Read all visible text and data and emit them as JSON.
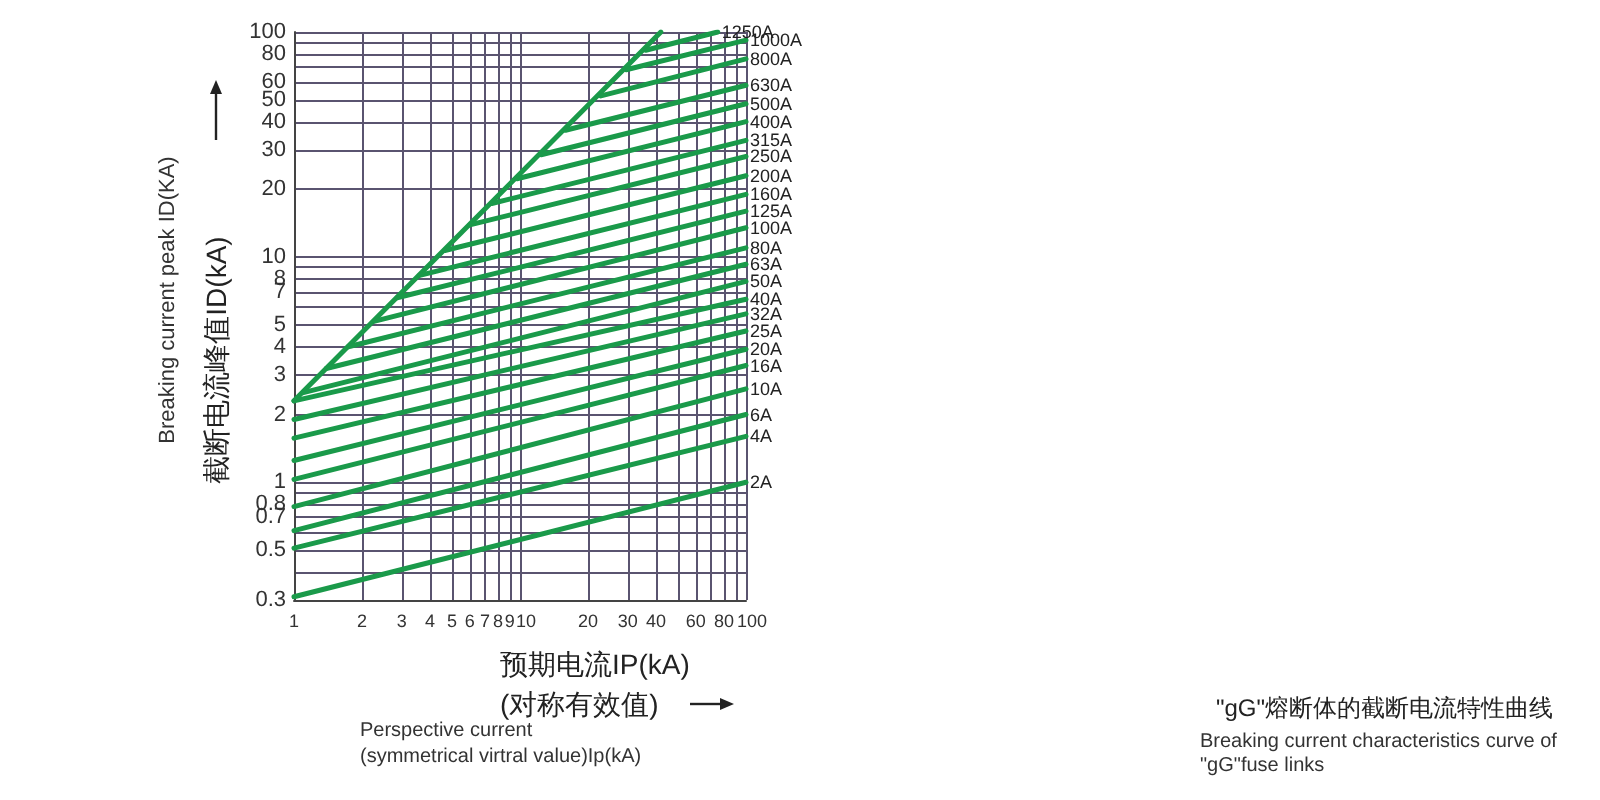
{
  "chart_data": {
    "type": "line",
    "title": "\"gG\"熔断体的截断电流特性曲线",
    "subtitle": "Breaking current characteristics curve of\n\"gG\"fuse links",
    "xlabel": "预期电流IP(kA)\n(对称有效值)",
    "ylabel": "截断电流峰值ID(kA)",
    "annotations": [
      "Breaking current peak ID(KA)",
      "Perspective current\n(symmetrical virtral value)Ip(kA)"
    ],
    "log": "xy",
    "grid": true,
    "marker": "none",
    "line_style": "solid",
    "xlim": [
      1,
      100
    ],
    "ylim": [
      0.3,
      100
    ],
    "xticks": [
      1,
      2,
      3,
      4,
      5,
      6,
      7,
      8,
      9,
      10,
      20,
      30,
      40,
      {
        "value": 50,
        "label": null
      },
      60,
      {
        "value": 70,
        "label": null
      },
      80,
      {
        "value": 90,
        "label": null
      },
      100
    ],
    "yticks": [
      0.3,
      {
        "value": 0.4,
        "label": null
      },
      0.5,
      {
        "value": 0.6,
        "label": null
      },
      0.7,
      0.8,
      {
        "value": 0.9,
        "label": null
      },
      1,
      2,
      3,
      4,
      5,
      {
        "value": 6,
        "label": null
      },
      7,
      8,
      {
        "value": 9,
        "label": null
      },
      10,
      20,
      30,
      40,
      50,
      60,
      {
        "value": 70,
        "label": null
      },
      80,
      {
        "value": 90,
        "label": null
      },
      100
    ],
    "series": [
      {
        "color": "#1a9a4a",
        "x": [
          1,
          42
        ],
        "values": [
          2.3,
          100
        ]
      },
      {
        "name": "1250A",
        "color": "#1a9a4a",
        "x": [
          36,
          75
        ],
        "values": [
          83,
          100
        ]
      },
      {
        "name": "1000A",
        "color": "#1a9a4a",
        "x": [
          29.5,
          100
        ],
        "values": [
          68,
          92
        ]
      },
      {
        "name": "800A",
        "color": "#1a9a4a",
        "x": [
          22.8,
          100
        ],
        "values": [
          52,
          76
        ]
      },
      {
        "name": "630A",
        "color": "#1a9a4a",
        "x": [
          15.9,
          100
        ],
        "values": [
          36.6,
          58
        ]
      },
      {
        "name": "500A",
        "color": "#1a9a4a",
        "x": [
          12.4,
          100
        ],
        "values": [
          28.5,
          48
        ]
      },
      {
        "name": "400A",
        "color": "#1a9a4a",
        "x": [
          9.7,
          100
        ],
        "values": [
          22.3,
          40
        ]
      },
      {
        "name": "315A",
        "color": "#1a9a4a",
        "x": [
          7.5,
          100
        ],
        "values": [
          17.3,
          33
        ]
      },
      {
        "name": "250A",
        "color": "#1a9a4a",
        "x": [
          6,
          100
        ],
        "values": [
          13.9,
          28
        ]
      },
      {
        "name": "200A",
        "color": "#1a9a4a",
        "x": [
          4.65,
          100
        ],
        "values": [
          10.7,
          23
        ]
      },
      {
        "name": "160A",
        "color": "#1a9a4a",
        "x": [
          3.6,
          100
        ],
        "values": [
          8.3,
          19
        ]
      },
      {
        "name": "125A",
        "color": "#1a9a4a",
        "x": [
          2.86,
          100
        ],
        "values": [
          6.6,
          16
        ]
      },
      {
        "name": "100A",
        "color": "#1a9a4a",
        "x": [
          2.28,
          100
        ],
        "values": [
          5.2,
          13.5
        ]
      },
      {
        "name": "80A",
        "color": "#1a9a4a",
        "x": [
          1.74,
          100
        ],
        "values": [
          4,
          11
        ]
      },
      {
        "name": "63A",
        "color": "#1a9a4a",
        "x": [
          1.39,
          100
        ],
        "values": [
          3.2,
          9.3
        ]
      },
      {
        "name": "50A",
        "color": "#1a9a4a",
        "x": [
          1.1,
          100
        ],
        "values": [
          2.5,
          7.8
        ]
      },
      {
        "name": "40A",
        "color": "#1a9a4a",
        "x": [
          1,
          100
        ],
        "values": [
          2.3,
          6.5
        ]
      },
      {
        "name": "32A",
        "color": "#1a9a4a",
        "x": [
          1,
          100
        ],
        "values": [
          1.9,
          5.6
        ]
      },
      {
        "name": "25A",
        "color": "#1a9a4a",
        "x": [
          1,
          100
        ],
        "values": [
          1.57,
          4.7
        ]
      },
      {
        "name": "20A",
        "color": "#1a9a4a",
        "x": [
          1,
          100
        ],
        "values": [
          1.25,
          3.9
        ]
      },
      {
        "name": "16A",
        "color": "#1a9a4a",
        "x": [
          1,
          100
        ],
        "values": [
          1.03,
          3.3
        ]
      },
      {
        "name": "10A",
        "color": "#1a9a4a",
        "x": [
          1,
          100
        ],
        "values": [
          0.78,
          2.6
        ]
      },
      {
        "name": "6A",
        "color": "#1a9a4a",
        "x": [
          1,
          100
        ],
        "values": [
          0.61,
          2
        ]
      },
      {
        "name": "4A",
        "color": "#1a9a4a",
        "x": [
          1,
          100
        ],
        "values": [
          0.51,
          1.6
        ]
      },
      {
        "name": "2A",
        "color": "#1a9a4a",
        "x": [
          1,
          100
        ],
        "values": [
          0.31,
          1
        ]
      }
    ]
  }
}
